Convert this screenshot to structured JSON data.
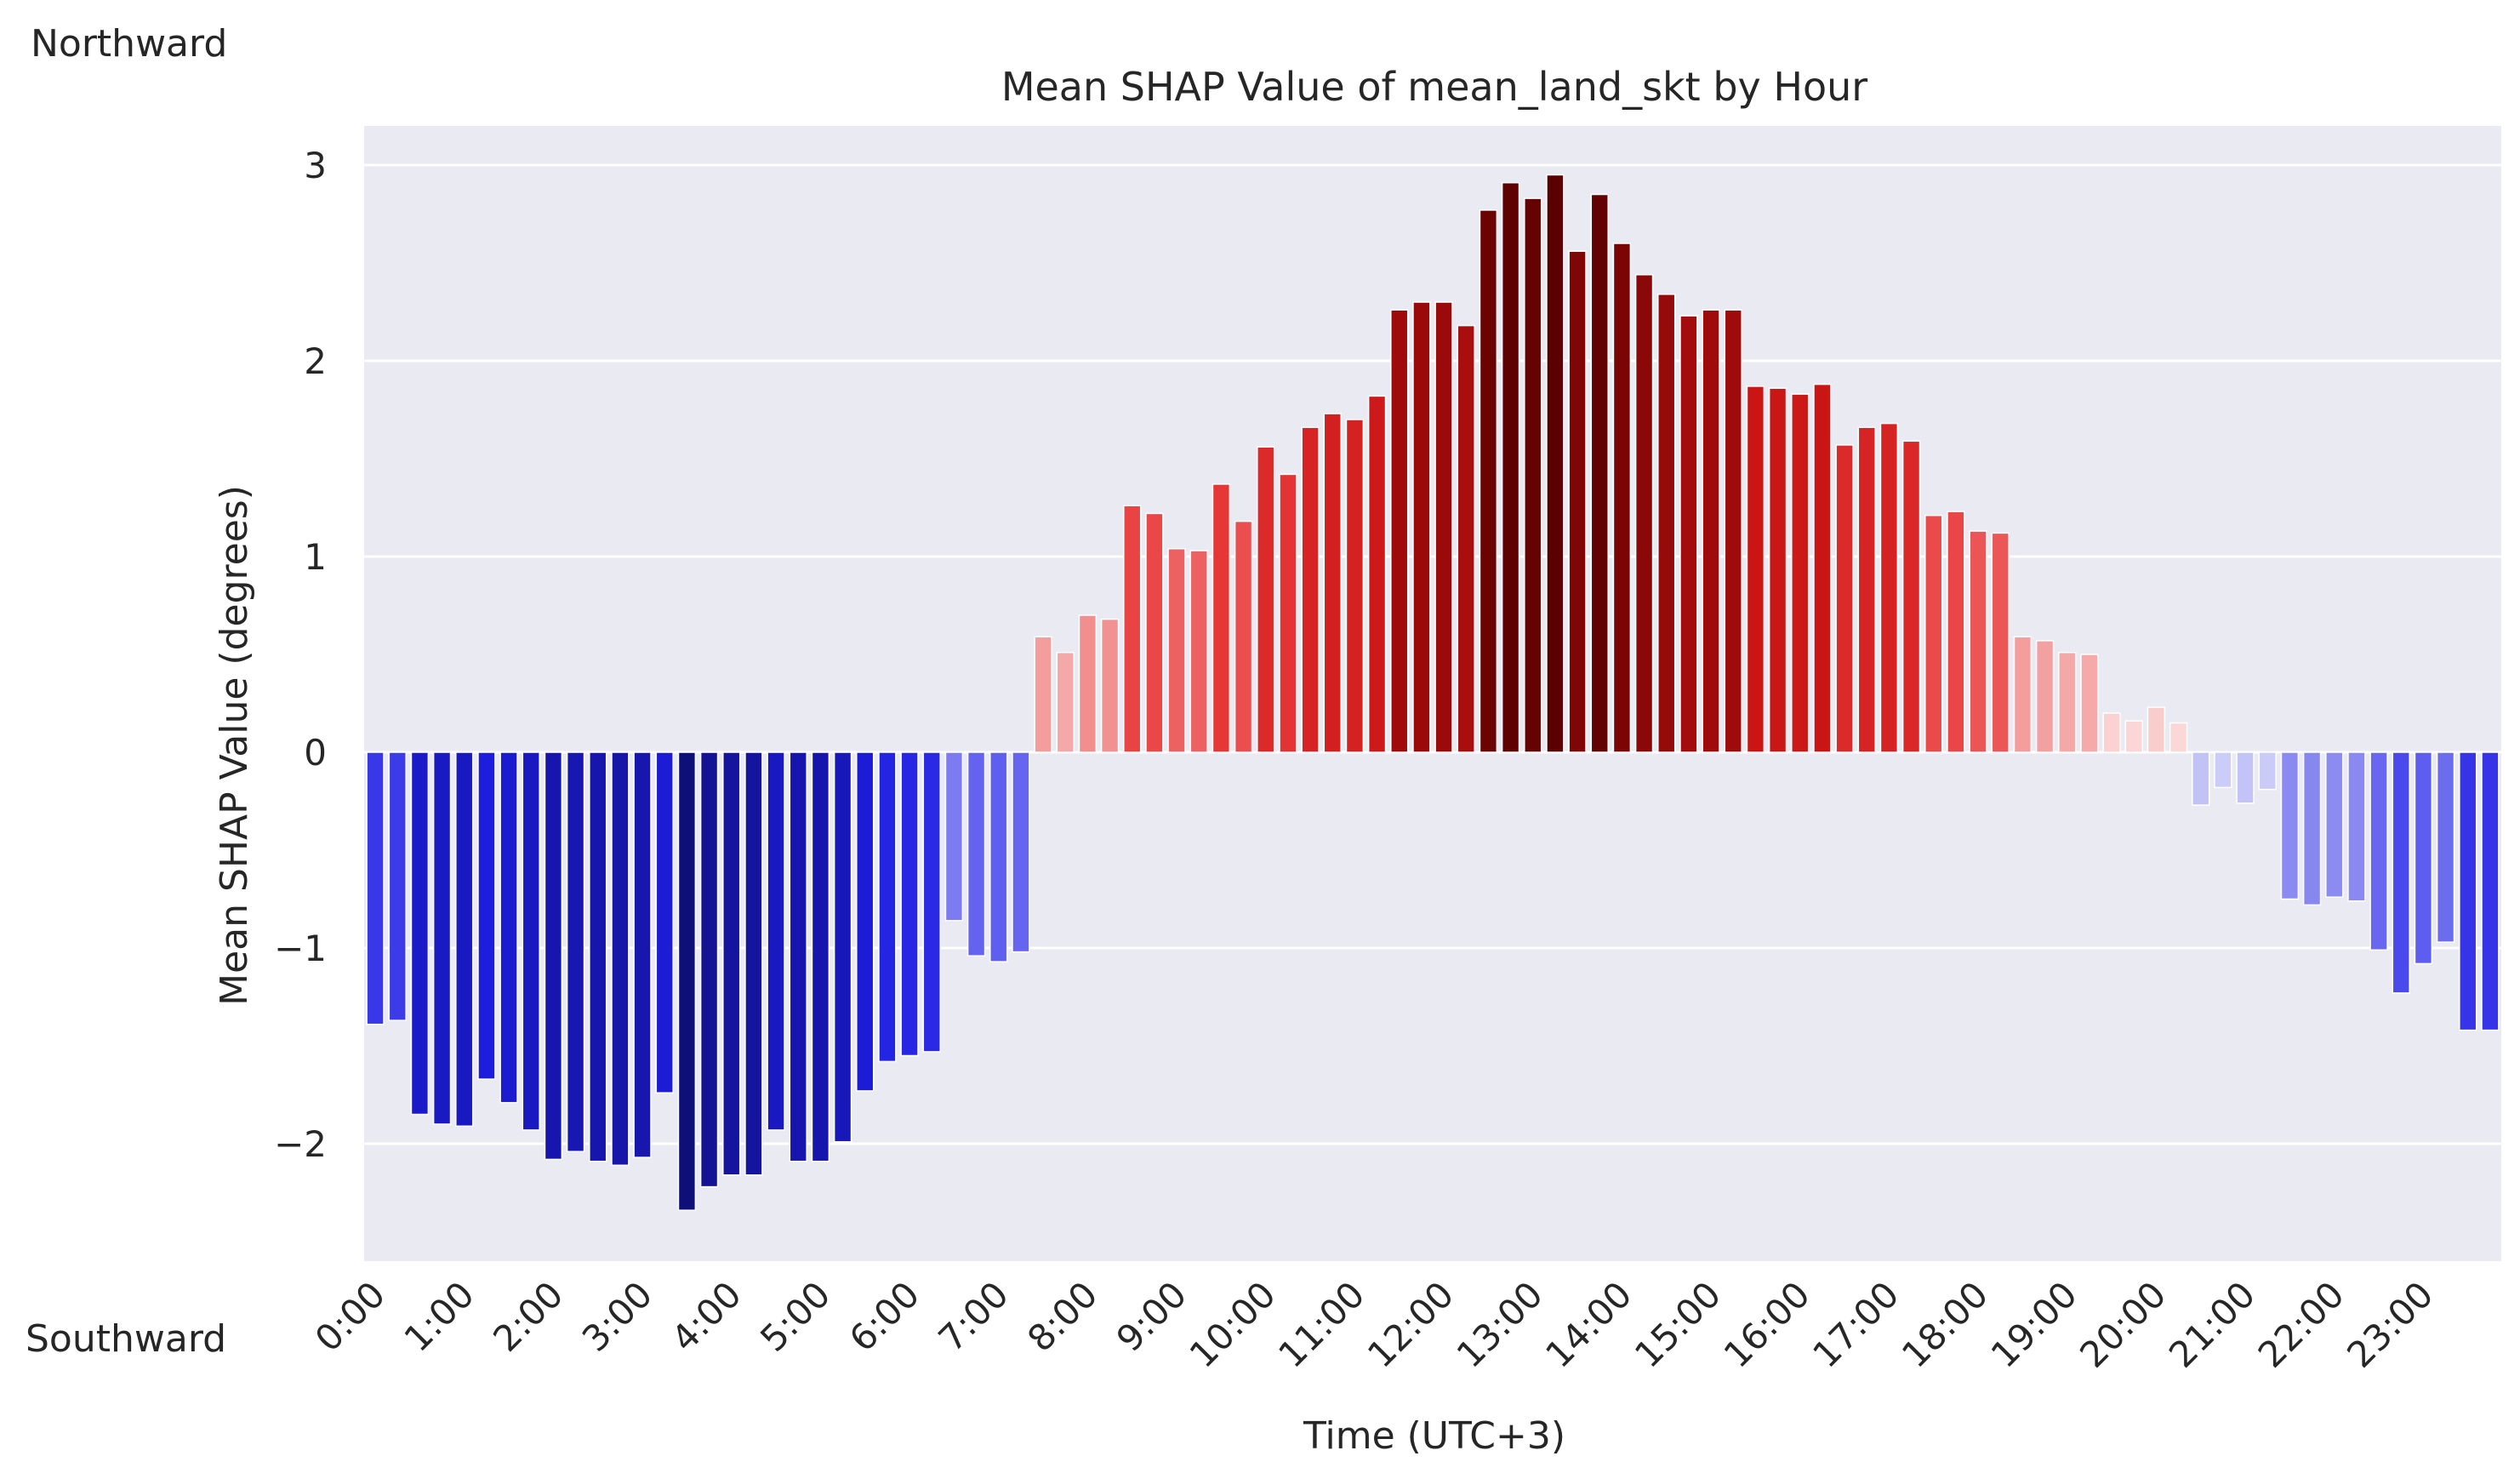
{
  "labels": {
    "north": "Northward",
    "south": "Southward"
  },
  "chart_data": {
    "type": "bar",
    "title": "Mean SHAP Value of mean_land_skt by Hour",
    "xlabel": "Time (UTC+3)",
    "ylabel": "Mean SHAP Value (degrees)",
    "ylim": [
      -2.6,
      3.2
    ],
    "yticks": [
      3,
      2,
      1,
      0,
      -1,
      -2
    ],
    "ytick_labels": [
      "3",
      "2",
      "1",
      "0",
      "−1",
      "−2"
    ],
    "grid": true,
    "bar_interval_minutes": 15,
    "xtick_labels": [
      "0:00",
      "1:00",
      "2:00",
      "3:00",
      "4:00",
      "5:00",
      "6:00",
      "7:00",
      "8:00",
      "9:00",
      "10:00",
      "11:00",
      "12:00",
      "13:00",
      "14:00",
      "15:00",
      "16:00",
      "17:00",
      "18:00",
      "19:00",
      "20:00",
      "21:00",
      "22:00",
      "23:00"
    ],
    "colors": {
      "positive_max": "#5a0000",
      "negative_max": "#0f0f7a",
      "background": "#eaeaf2",
      "grid": "#ffffff"
    },
    "values": [
      -1.39,
      -1.37,
      -1.85,
      -1.9,
      -1.91,
      -1.67,
      -1.79,
      -1.93,
      -2.08,
      -2.04,
      -2.09,
      -2.11,
      -2.07,
      -1.74,
      -2.34,
      -2.22,
      -2.16,
      -2.16,
      -1.93,
      -2.09,
      -2.09,
      -1.99,
      -1.73,
      -1.58,
      -1.55,
      -1.53,
      -0.86,
      -1.04,
      -1.07,
      -1.02,
      0.59,
      0.51,
      0.7,
      0.68,
      1.26,
      1.22,
      1.04,
      1.03,
      1.37,
      1.18,
      1.56,
      1.42,
      1.66,
      1.73,
      1.7,
      1.82,
      2.26,
      2.3,
      2.3,
      2.18,
      2.77,
      2.91,
      2.83,
      2.95,
      2.56,
      2.85,
      2.6,
      2.44,
      2.34,
      2.23,
      2.26,
      2.26,
      1.87,
      1.86,
      1.83,
      1.88,
      1.57,
      1.66,
      1.68,
      1.59,
      1.21,
      1.23,
      1.13,
      1.12,
      0.59,
      0.57,
      0.51,
      0.5,
      0.2,
      0.16,
      0.23,
      0.15,
      -0.27,
      -0.18,
      -0.26,
      -0.19,
      -0.75,
      -0.78,
      -0.74,
      -0.76,
      -1.01,
      -1.23,
      -1.08,
      -0.97,
      -1.42,
      -1.42
    ]
  }
}
